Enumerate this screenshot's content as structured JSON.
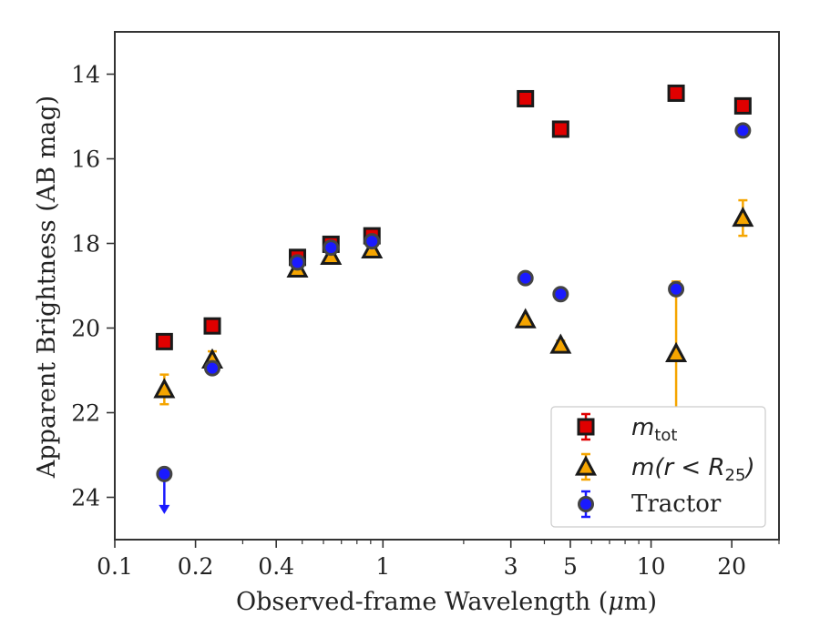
{
  "chart_data": {
    "type": "scatter",
    "x_scale": "log",
    "y_inverted": true,
    "xlabel_text": "Observed-frame Wavelength (",
    "xlabel_unit": "μ",
    "xlabel_tail": "m)",
    "ylabel": "Apparent Brightness (AB mag)",
    "xlim": [
      0.1,
      30
    ],
    "ylim": [
      25,
      13
    ],
    "xticks": [
      {
        "value": 0.1,
        "label": "0.1"
      },
      {
        "value": 0.2,
        "label": "0.2"
      },
      {
        "value": 0.4,
        "label": "0.4"
      },
      {
        "value": 1,
        "label": "1"
      },
      {
        "value": 3,
        "label": "3"
      },
      {
        "value": 5,
        "label": "5"
      },
      {
        "value": 10,
        "label": "10"
      },
      {
        "value": 20,
        "label": "20"
      }
    ],
    "yticks": [
      {
        "value": 14,
        "label": "14"
      },
      {
        "value": 16,
        "label": "16"
      },
      {
        "value": 18,
        "label": "18"
      },
      {
        "value": 20,
        "label": "20"
      },
      {
        "value": 22,
        "label": "22"
      },
      {
        "value": 24,
        "label": "24"
      }
    ],
    "legend_placement": "lower-right",
    "series": [
      {
        "name": "m_tot",
        "legend_main": "m",
        "legend_sub": "tot",
        "marker": "square",
        "color": "#e00000",
        "edge": "#1a1a1a",
        "points": [
          {
            "x": 0.153,
            "y": 20.32,
            "err": 0.05
          },
          {
            "x": 0.231,
            "y": 19.95,
            "err": 0.05
          },
          {
            "x": 0.48,
            "y": 18.33,
            "err": 0.05
          },
          {
            "x": 0.64,
            "y": 18.02,
            "err": 0.05
          },
          {
            "x": 0.91,
            "y": 17.82,
            "err": 0.05
          },
          {
            "x": 3.4,
            "y": 14.58,
            "err": 0.03
          },
          {
            "x": 4.6,
            "y": 15.3,
            "err": 0.03
          },
          {
            "x": 12.4,
            "y": 14.45,
            "err": 0.03
          },
          {
            "x": 22.0,
            "y": 14.75,
            "err": 0.03
          }
        ]
      },
      {
        "name": "m(r<R25)",
        "legend_main": "m(r < R",
        "legend_sub": "25",
        "legend_tail": ")",
        "marker": "triangle",
        "color": "#f5a500",
        "edge": "#1a1a1a",
        "points": [
          {
            "x": 0.153,
            "y": 21.45,
            "err": 0.35
          },
          {
            "x": 0.231,
            "y": 20.75,
            "err": 0.2
          },
          {
            "x": 0.48,
            "y": 18.6,
            "err": 0.08
          },
          {
            "x": 0.64,
            "y": 18.3,
            "err": 0.05
          },
          {
            "x": 0.91,
            "y": 18.15,
            "err": 0.05
          },
          {
            "x": 3.4,
            "y": 19.8,
            "err": 0.05
          },
          {
            "x": 4.6,
            "y": 20.4,
            "err": 0.1
          },
          {
            "x": 12.4,
            "y": 20.6,
            "err": 1.7
          },
          {
            "x": 22.0,
            "y": 17.4,
            "err": 0.42
          }
        ]
      },
      {
        "name": "Tractor",
        "legend_main": "Tractor",
        "marker": "circle",
        "color": "#1a1aff",
        "edge": "#444444",
        "points": [
          {
            "x": 0.153,
            "y": 23.45,
            "err": 0,
            "upper_limit": true
          },
          {
            "x": 0.231,
            "y": 20.95,
            "err": 0.03
          },
          {
            "x": 0.48,
            "y": 18.45,
            "err": 0.03
          },
          {
            "x": 0.64,
            "y": 18.1,
            "err": 0.03
          },
          {
            "x": 0.91,
            "y": 17.95,
            "err": 0.03
          },
          {
            "x": 3.4,
            "y": 18.82,
            "err": 0.03
          },
          {
            "x": 4.6,
            "y": 19.2,
            "err": 0.03
          },
          {
            "x": 12.4,
            "y": 19.08,
            "err": 0.03
          },
          {
            "x": 22.0,
            "y": 15.33,
            "err": 0.03
          }
        ]
      }
    ]
  }
}
